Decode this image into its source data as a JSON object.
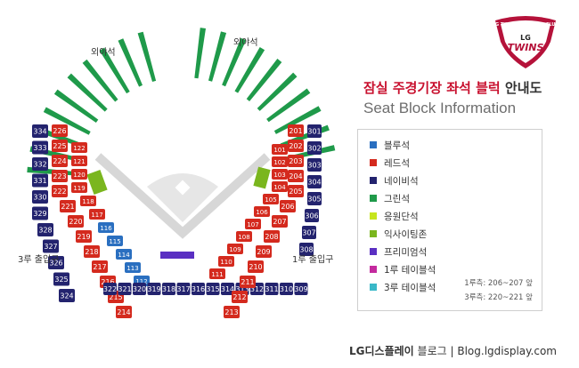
{
  "title": {
    "main_red": "잠실 주경기장 좌석 블럭",
    "main_dark": "안내도",
    "sub": "Seat Block Information"
  },
  "logo": {
    "text_ring": "LG TWINS BASEBALL CLUB",
    "text_lg": "LG",
    "text_twins": "TWINS"
  },
  "map_labels": {
    "outfield_left": "외야석",
    "outfield_right": "외야석",
    "exit_3b": "3루 출입구",
    "exit_1b": "1루 출입구"
  },
  "legend": [
    {
      "label": "블루석",
      "color": "#2a6fc0"
    },
    {
      "label": "레드석",
      "color": "#d42a1e"
    },
    {
      "label": "네이비석",
      "color": "#23236e"
    },
    {
      "label": "그린석",
      "color": "#1f9a4a"
    },
    {
      "label": "응원단석",
      "color": "#c6e51e"
    },
    {
      "label": "익사이팅존",
      "color": "#7ab61e"
    },
    {
      "label": "프리미엄석",
      "color": "#5a2fc2"
    },
    {
      "label": "1루 테이블석",
      "color": "#c42a9e"
    },
    {
      "label": "3루 테이블석",
      "color": "#3ab8c8"
    }
  ],
  "notes": [
    "1루측: 206~207 앞",
    "3루측: 220~221 앞"
  ],
  "footer": {
    "brand": "LG디스플레이",
    "blog": "블로그",
    "sep": "|",
    "url": "Blog.lgdisplay.com"
  },
  "sections": {
    "navy_left_column": [
      "334",
      "333",
      "332",
      "331",
      "330",
      "329",
      "328",
      "327",
      "326",
      "325",
      "324"
    ],
    "navy_bottom": [
      "322",
      "321",
      "320",
      "319",
      "318",
      "317",
      "316",
      "315",
      "314",
      "313",
      "312",
      "311",
      "310",
      "309"
    ],
    "navy_right_column": [
      "301",
      "302",
      "303",
      "304",
      "305",
      "306",
      "307",
      "308"
    ],
    "red_left_outer": [
      "226",
      "225",
      "224",
      "223",
      "222",
      "221",
      "220",
      "219",
      "218",
      "217",
      "216",
      "215",
      "214"
    ],
    "red_left_inner": [
      "122",
      "121",
      "120",
      "119",
      "118",
      "117",
      "116",
      "115",
      "114",
      "113",
      "112"
    ],
    "red_right_outer": [
      "201",
      "202",
      "203",
      "204",
      "205",
      "206",
      "207",
      "208",
      "209",
      "210",
      "211",
      "212",
      "213"
    ],
    "red_right_inner": [
      "101",
      "102",
      "103",
      "104",
      "105",
      "106",
      "107",
      "108",
      "109",
      "110",
      "111"
    ]
  }
}
